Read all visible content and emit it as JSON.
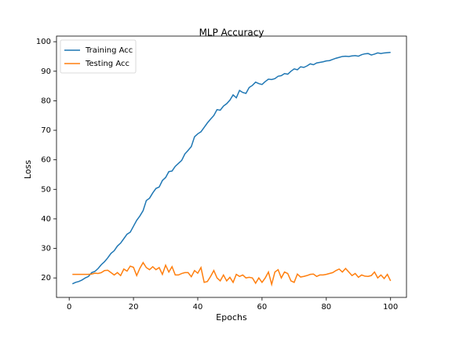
{
  "chart_data": {
    "type": "line",
    "title": "MLP Accuracy",
    "xlabel": "Epochs",
    "ylabel": "Loss",
    "x": [
      1,
      2,
      3,
      4,
      5,
      6,
      7,
      8,
      9,
      10,
      11,
      12,
      13,
      14,
      15,
      16,
      17,
      18,
      19,
      20,
      21,
      22,
      23,
      24,
      25,
      26,
      27,
      28,
      29,
      30,
      31,
      32,
      33,
      34,
      35,
      36,
      37,
      38,
      39,
      40,
      41,
      42,
      43,
      44,
      45,
      46,
      47,
      48,
      49,
      50,
      51,
      52,
      53,
      54,
      55,
      56,
      57,
      58,
      59,
      60,
      61,
      62,
      63,
      64,
      65,
      66,
      67,
      68,
      69,
      70,
      71,
      72,
      73,
      74,
      75,
      76,
      77,
      78,
      79,
      80,
      81,
      82,
      83,
      84,
      85,
      86,
      87,
      88,
      89,
      90,
      91,
      92,
      93,
      94,
      95,
      96,
      97,
      98,
      99,
      100
    ],
    "series": [
      {
        "name": "Training Acc",
        "color": "#1f77b4",
        "values": [
          18.0,
          18.5,
          18.8,
          19.3,
          20.0,
          20.5,
          21.8,
          22.2,
          23.2,
          24.5,
          25.5,
          26.8,
          28.3,
          29.2,
          30.8,
          31.8,
          33.3,
          34.8,
          35.5,
          37.5,
          39.5,
          41.0,
          42.8,
          46.2,
          47.0,
          48.8,
          50.3,
          50.8,
          53.0,
          54.0,
          56.0,
          56.2,
          57.8,
          58.8,
          59.8,
          62.0,
          63.2,
          64.5,
          67.8,
          68.8,
          69.5,
          71.0,
          72.5,
          73.8,
          75.0,
          77.0,
          76.8,
          78.2,
          79.0,
          80.2,
          82.0,
          81.0,
          83.5,
          82.8,
          82.5,
          84.5,
          85.2,
          86.3,
          85.8,
          85.5,
          86.5,
          87.3,
          87.2,
          87.5,
          88.3,
          88.5,
          89.2,
          89.0,
          90.0,
          90.8,
          90.5,
          91.5,
          91.3,
          91.8,
          92.5,
          92.2,
          92.8,
          93.0,
          93.2,
          93.5,
          93.6,
          94.0,
          94.4,
          94.7,
          95.0,
          95.1,
          95.0,
          95.2,
          95.3,
          95.1,
          95.6,
          95.9,
          96.0,
          95.5,
          95.8,
          96.2,
          96.0,
          96.2,
          96.3,
          96.4
        ]
      },
      {
        "name": "Testing Acc",
        "color": "#ff7f0e",
        "values": [
          21.2,
          21.2,
          21.2,
          21.2,
          21.2,
          21.2,
          21.3,
          21.6,
          21.5,
          21.8,
          22.5,
          22.6,
          21.8,
          21.0,
          21.8,
          20.8,
          23.0,
          22.3,
          24.0,
          23.6,
          20.8,
          23.3,
          25.2,
          23.5,
          22.8,
          23.8,
          22.8,
          23.5,
          21.2,
          24.3,
          22.0,
          23.8,
          21.0,
          21.0,
          21.5,
          21.8,
          21.8,
          20.4,
          22.5,
          21.6,
          23.5,
          18.5,
          18.8,
          20.5,
          22.5,
          20.0,
          19.0,
          21.0,
          19.0,
          20.2,
          18.5,
          21.2,
          20.5,
          21.0,
          20.0,
          20.2,
          20.0,
          18.2,
          20.0,
          18.5,
          20.0,
          22.0,
          17.8,
          22.0,
          22.8,
          20.0,
          22.0,
          21.5,
          19.0,
          18.5,
          21.3,
          20.3,
          20.5,
          20.8,
          21.2,
          21.3,
          20.5,
          21.0,
          21.0,
          21.2,
          21.5,
          21.8,
          22.5,
          23.0,
          22.0,
          23.2,
          22.0,
          20.8,
          21.5,
          20.2,
          21.0,
          20.6,
          20.5,
          20.8,
          22.0,
          20.0,
          21.0,
          19.8,
          21.2,
          19.0
        ]
      }
    ],
    "xlim": [
      -3.95,
      104.95
    ],
    "ylim": [
      13.4,
      101.9
    ],
    "xticks": [
      0,
      20,
      40,
      60,
      80,
      100
    ],
    "yticks": [
      20,
      30,
      40,
      50,
      60,
      70,
      80,
      90,
      100
    ],
    "legend": "upper left",
    "grid": false
  }
}
